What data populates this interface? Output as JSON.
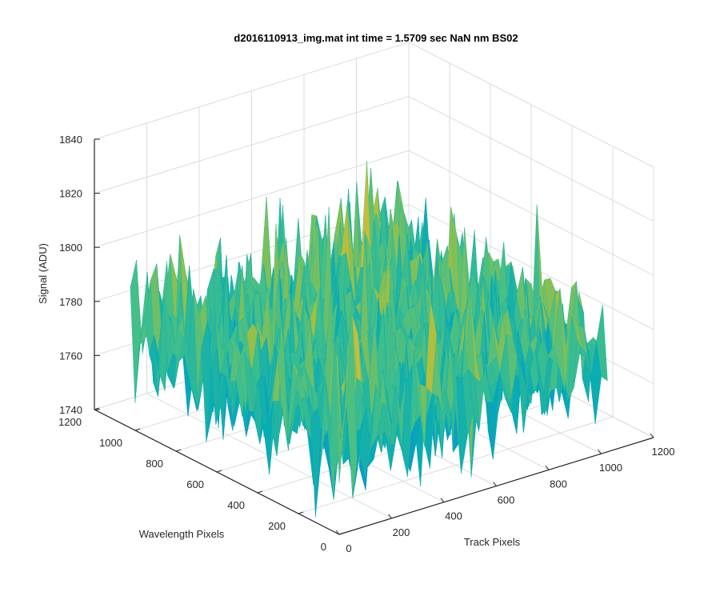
{
  "chart_data": {
    "type": "surface",
    "title": "d2016110913_img.mat int time = 1.5709 sec  NaN nm BS02",
    "zlabel": "Signal (ADU)",
    "xlabel": "Track Pixels",
    "ylabel": "Wavelength Pixels",
    "xlim": [
      0,
      1200
    ],
    "ylim": [
      0,
      1200
    ],
    "zlim": [
      1740,
      1840
    ],
    "xticks": [
      "0",
      "200",
      "400",
      "600",
      "800",
      "1000",
      "1200"
    ],
    "yticks": [
      "0",
      "200",
      "400",
      "600",
      "800",
      "1000",
      "1200"
    ],
    "zticks": [
      "1740",
      "1760",
      "1780",
      "1800",
      "1820",
      "1840"
    ],
    "data_extent": {
      "x": [
        0,
        1024
      ],
      "y": [
        0,
        1024
      ]
    },
    "mean_signal": 1775,
    "noise_amplitude": 12,
    "colormap": "parula",
    "grid": true
  }
}
